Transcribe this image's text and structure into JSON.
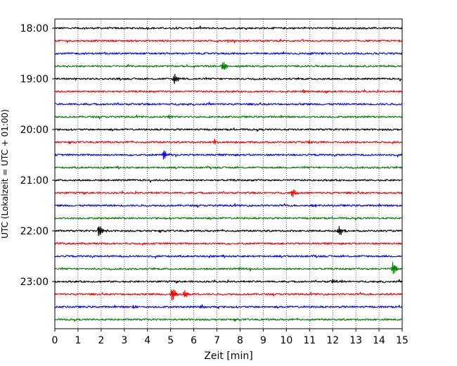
{
  "chart_data": {
    "type": "line",
    "title": "",
    "xlabel": "Zeit  [min]",
    "ylabel": "UTC (Lokalzeit = UTC + 01:00)",
    "xlim": [
      0,
      15
    ],
    "x_ticks": [
      0,
      1,
      2,
      3,
      4,
      5,
      6,
      7,
      8,
      9,
      10,
      11,
      12,
      13,
      14,
      15
    ],
    "x_tick_labels": [
      "0",
      "1",
      "2",
      "3",
      "4",
      "5",
      "6",
      "7",
      "8",
      "9",
      "10",
      "11",
      "12",
      "13",
      "14",
      "15"
    ],
    "y_tick_labels": [
      "18:00",
      "19:00",
      "20:00",
      "21:00",
      "22:00",
      "23:00"
    ],
    "y_tick_rows": [
      0,
      4,
      8,
      12,
      16,
      20
    ],
    "grid": "vertical dotted lines at each minute",
    "legend": "none",
    "trace_colors": [
      "#000000",
      "#ff0000",
      "#0000ff",
      "#008000"
    ],
    "series": [
      {
        "start": "18:00",
        "color": "#000000",
        "events": []
      },
      {
        "start": "18:15",
        "color": "#ff0000",
        "events": []
      },
      {
        "start": "18:30",
        "color": "#0000ff",
        "events": []
      },
      {
        "start": "18:45",
        "color": "#008000",
        "events": [
          {
            "t": 7.25,
            "amp": 0.45
          }
        ]
      },
      {
        "start": "19:00",
        "color": "#000000",
        "events": [
          {
            "t": 5.15,
            "amp": 0.55
          }
        ]
      },
      {
        "start": "19:15",
        "color": "#ff0000",
        "events": [
          {
            "t": 10.75,
            "amp": 0.15
          }
        ]
      },
      {
        "start": "19:30",
        "color": "#0000ff",
        "events": []
      },
      {
        "start": "19:45",
        "color": "#008000",
        "events": [
          {
            "t": 4.9,
            "amp": 0.15
          }
        ]
      },
      {
        "start": "20:00",
        "color": "#000000",
        "events": []
      },
      {
        "start": "20:15",
        "color": "#ff0000",
        "events": [
          {
            "t": 6.9,
            "amp": 0.2
          },
          {
            "t": 11.0,
            "amp": 0.15
          }
        ]
      },
      {
        "start": "20:30",
        "color": "#0000ff",
        "events": [
          {
            "t": 4.7,
            "amp": 0.45
          }
        ]
      },
      {
        "start": "20:45",
        "color": "#008000",
        "events": []
      },
      {
        "start": "21:00",
        "color": "#000000",
        "events": []
      },
      {
        "start": "21:15",
        "color": "#ff0000",
        "events": [
          {
            "t": 10.25,
            "amp": 0.35
          }
        ]
      },
      {
        "start": "21:30",
        "color": "#0000ff",
        "events": [
          {
            "t": 11.15,
            "amp": 0.12
          }
        ]
      },
      {
        "start": "21:45",
        "color": "#008000",
        "events": []
      },
      {
        "start": "22:00",
        "color": "#000000",
        "events": [
          {
            "t": 1.9,
            "amp": 0.6
          },
          {
            "t": 12.25,
            "amp": 0.5
          }
        ]
      },
      {
        "start": "22:15",
        "color": "#ff0000",
        "events": []
      },
      {
        "start": "22:30",
        "color": "#0000ff",
        "events": []
      },
      {
        "start": "22:45",
        "color": "#008000",
        "events": [
          {
            "t": 14.6,
            "amp": 0.6
          },
          {
            "t": 8.0,
            "amp": 0.12
          }
        ]
      },
      {
        "start": "23:00",
        "color": "#000000",
        "events": [
          {
            "t": 12.0,
            "amp": 0.15
          }
        ]
      },
      {
        "start": "23:15",
        "color": "#ff0000",
        "events": [
          {
            "t": 5.05,
            "amp": 0.65
          },
          {
            "t": 5.6,
            "amp": 0.35
          }
        ]
      },
      {
        "start": "23:30",
        "color": "#0000ff",
        "events": [
          {
            "t": 6.25,
            "amp": 0.18
          },
          {
            "t": 3.4,
            "amp": 0.12
          }
        ]
      },
      {
        "start": "23:45",
        "color": "#008000",
        "events": []
      }
    ]
  }
}
